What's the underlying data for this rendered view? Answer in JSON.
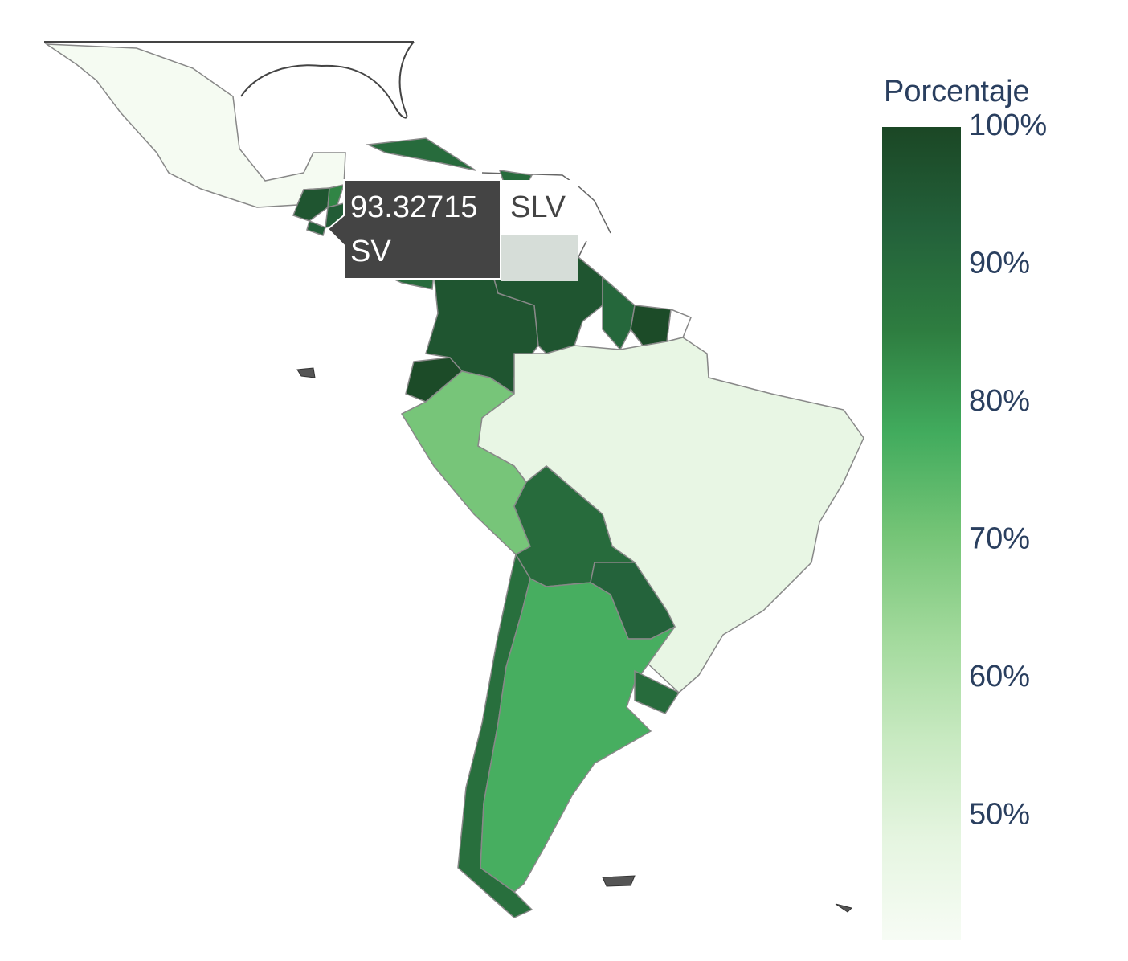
{
  "chart_data": {
    "type": "choropleth",
    "values": [
      42,
      96,
      84,
      94,
      93.32715,
      92,
      85,
      90,
      90,
      90,
      96,
      96,
      91,
      99,
      99,
      70,
      47,
      90,
      92,
      89,
      77,
      90
    ],
    "colorbar_title": "Porcentaje",
    "clim": [
      41,
      100
    ],
    "cticks": [
      {
        "value": 50,
        "label": "50%"
      },
      {
        "value": 60,
        "label": "60%"
      },
      {
        "value": 70,
        "label": "70%"
      },
      {
        "value": 80,
        "label": "80%"
      },
      {
        "value": 90,
        "label": "90%"
      },
      {
        "value": 100,
        "label": "100%"
      }
    ],
    "colorscale": [
      "#f7fcf5",
      "#e5f5e0",
      "#c7e9c0",
      "#a1d99b",
      "#74c476",
      "#41ab5d",
      "#2e7d40",
      "#23613a",
      "#1b4725"
    ],
    "tooltip": {
      "location": "SLV",
      "label": "SV"
    }
  }
}
